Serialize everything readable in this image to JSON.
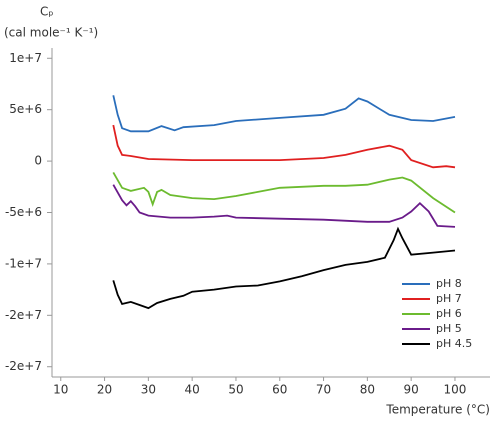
{
  "chart_data": {
    "type": "line",
    "y_label": "Cₚ",
    "y_units": "(cal mole⁻¹ K⁻¹)",
    "x_label": "Temperature (°C)",
    "xlim": [
      8,
      108
    ],
    "ylim": [
      -21000000,
      11000000
    ],
    "xticks": [
      10,
      20,
      30,
      40,
      50,
      60,
      70,
      80,
      90,
      100
    ],
    "yticks": [
      {
        "value": 10000000,
        "label": "1e+7"
      },
      {
        "value": 5000000,
        "label": "5e+6"
      },
      0,
      {
        "value": -5000000,
        "label": "-5e+6"
      },
      {
        "value": -10000000,
        "label": "-1e+7"
      },
      {
        "value": -15000000,
        "label": "-2e+7"
      },
      {
        "value": -20000000,
        "label": "-2e+7"
      }
    ],
    "legend": "lower right",
    "series": [
      {
        "name": "pH 8",
        "color": "#2a6ebb",
        "x": [
          22,
          23,
          24,
          26,
          30,
          33,
          36,
          38,
          45,
          50,
          60,
          70,
          75,
          78,
          80,
          85,
          90,
          95,
          100
        ],
        "values": [
          6400000,
          4500000,
          3200000,
          2900000,
          2900000,
          3400000,
          3000000,
          3300000,
          3500000,
          3900000,
          4200000,
          4500000,
          5100000,
          6100000,
          5800000,
          4500000,
          4000000,
          3900000,
          4300000
        ]
      },
      {
        "name": "pH 7",
        "color": "#e02020",
        "x": [
          22,
          23,
          24,
          26,
          30,
          40,
          60,
          70,
          75,
          80,
          85,
          88,
          90,
          95,
          98,
          100
        ],
        "values": [
          3500000,
          1500000,
          600000,
          500000,
          200000,
          100000,
          100000,
          300000,
          600000,
          1100000,
          1500000,
          1100000,
          100000,
          -600000,
          -500000,
          -600000
        ]
      },
      {
        "name": "pH 6",
        "color": "#6cbb2f",
        "x": [
          22,
          24,
          26,
          29,
          30,
          31,
          32,
          33,
          35,
          40,
          45,
          50,
          55,
          60,
          70,
          75,
          80,
          85,
          88,
          90,
          95,
          100
        ],
        "values": [
          -1100000,
          -2600000,
          -2900000,
          -2600000,
          -3000000,
          -4200000,
          -3000000,
          -2800000,
          -3300000,
          -3600000,
          -3700000,
          -3400000,
          -3000000,
          -2600000,
          -2400000,
          -2400000,
          -2300000,
          -1800000,
          -1600000,
          -1900000,
          -3600000,
          -5000000
        ]
      },
      {
        "name": "pH 5",
        "color": "#6a1b8a",
        "x": [
          22,
          24,
          25,
          26,
          27,
          28,
          30,
          35,
          40,
          45,
          48,
          50,
          60,
          70,
          80,
          85,
          88,
          90,
          92,
          94,
          96,
          100
        ],
        "values": [
          -2300000,
          -3800000,
          -4300000,
          -3900000,
          -4400000,
          -5000000,
          -5300000,
          -5500000,
          -5500000,
          -5400000,
          -5300000,
          -5500000,
          -5600000,
          -5700000,
          -5900000,
          -5900000,
          -5500000,
          -4900000,
          -4100000,
          -4900000,
          -6300000,
          -6400000
        ]
      },
      {
        "name": "pH 4.5",
        "color": "#000000",
        "x": [
          22,
          23,
          24,
          26,
          28,
          30,
          32,
          35,
          38,
          40,
          45,
          50,
          55,
          60,
          65,
          70,
          75,
          80,
          84,
          86,
          87,
          88,
          90,
          95,
          100
        ],
        "values": [
          -11600000,
          -13000000,
          -13900000,
          -13700000,
          -14000000,
          -14300000,
          -13800000,
          -13400000,
          -13100000,
          -12700000,
          -12500000,
          -12200000,
          -12100000,
          -11700000,
          -11200000,
          -10600000,
          -10100000,
          -9800000,
          -9400000,
          -7700000,
          -6600000,
          -7500000,
          -9100000,
          -8900000,
          -8700000
        ]
      }
    ]
  }
}
